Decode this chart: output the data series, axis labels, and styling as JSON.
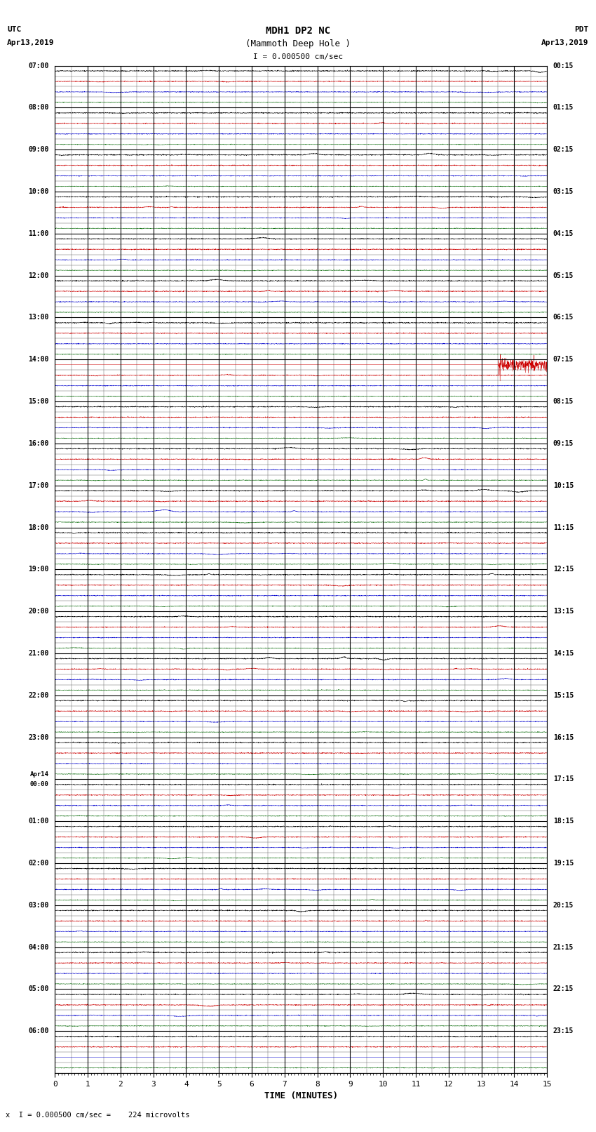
{
  "title_line1": "MDH1 DP2 NC",
  "title_line2": "(Mammoth Deep Hole )",
  "scale_label": "I = 0.000500 cm/sec",
  "utc_label": "UTC",
  "utc_date": "Apr13,2019",
  "pdt_label": "PDT",
  "pdt_date": "Apr13,2019",
  "footer_label": "x  I = 0.000500 cm/sec =    224 microvolts",
  "xlabel": "TIME (MINUTES)",
  "bg_color": "#ffffff",
  "trace_color_black": "#000000",
  "trace_color_red": "#cc0000",
  "trace_color_blue": "#0000cc",
  "trace_color_green": "#006600",
  "grid_color_major": "#000000",
  "grid_color_minor": "#888888",
  "n_rows": 47,
  "n_subrows": 4,
  "left_labels": [
    {
      "label": "07:00",
      "row": 0
    },
    {
      "label": "08:00",
      "row": 4
    },
    {
      "label": "09:00",
      "row": 8
    },
    {
      "label": "10:00",
      "row": 12
    },
    {
      "label": "11:00",
      "row": 16
    },
    {
      "label": "12:00",
      "row": 20
    },
    {
      "label": "13:00",
      "row": 24
    },
    {
      "label": "14:00",
      "row": 28
    },
    {
      "label": "15:00",
      "row": 32
    },
    {
      "label": "16:00",
      "row": 36
    },
    {
      "label": "17:00",
      "row": 40
    },
    {
      "label": "18:00",
      "row": 44
    },
    {
      "label": "19:00",
      "row": 48
    },
    {
      "label": "20:00",
      "row": 52
    },
    {
      "label": "21:00",
      "row": 56
    },
    {
      "label": "22:00",
      "row": 60
    },
    {
      "label": "23:00",
      "row": 64
    },
    {
      "label": "Apr14\n00:00",
      "row": 68
    },
    {
      "label": "01:00",
      "row": 72
    },
    {
      "label": "02:00",
      "row": 76
    },
    {
      "label": "03:00",
      "row": 80
    },
    {
      "label": "04:00",
      "row": 84
    },
    {
      "label": "05:00",
      "row": 88
    },
    {
      "label": "06:00",
      "row": 92
    }
  ],
  "right_labels": [
    {
      "label": "00:15",
      "row": 0
    },
    {
      "label": "01:15",
      "row": 4
    },
    {
      "label": "02:15",
      "row": 8
    },
    {
      "label": "03:15",
      "row": 12
    },
    {
      "label": "04:15",
      "row": 16
    },
    {
      "label": "05:15",
      "row": 20
    },
    {
      "label": "06:15",
      "row": 24
    },
    {
      "label": "07:15",
      "row": 28
    },
    {
      "label": "08:15",
      "row": 32
    },
    {
      "label": "09:15",
      "row": 36
    },
    {
      "label": "10:15",
      "row": 40
    },
    {
      "label": "11:15",
      "row": 44
    },
    {
      "label": "12:15",
      "row": 48
    },
    {
      "label": "13:15",
      "row": 52
    },
    {
      "label": "14:15",
      "row": 56
    },
    {
      "label": "15:15",
      "row": 60
    },
    {
      "label": "16:15",
      "row": 64
    },
    {
      "label": "17:15",
      "row": 68
    },
    {
      "label": "18:15",
      "row": 72
    },
    {
      "label": "19:15",
      "row": 76
    },
    {
      "label": "20:15",
      "row": 80
    },
    {
      "label": "21:15",
      "row": 84
    },
    {
      "label": "22:15",
      "row": 88
    },
    {
      "label": "23:15",
      "row": 92
    }
  ],
  "noise_seed": 12345,
  "trace_amp_black": 0.08,
  "trace_amp_red": 0.07,
  "trace_amp_blue": 0.06,
  "trace_amp_green": 0.05,
  "event_row_group": 7,
  "event_subrow": 0,
  "last_row_blue_band": true
}
